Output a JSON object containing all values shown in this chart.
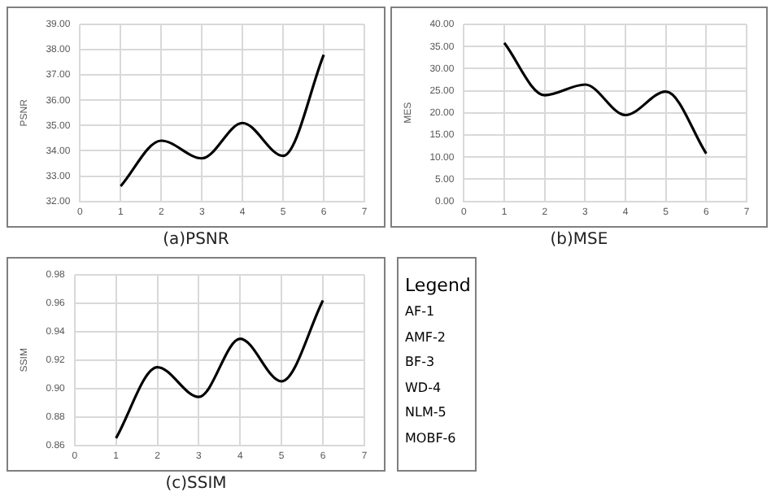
{
  "chart_data": [
    {
      "type": "line",
      "title": "(a)PSNR",
      "ylabel": "PSNR",
      "x": [
        1,
        2,
        3,
        4,
        5,
        6
      ],
      "series": [
        {
          "color": "#000000",
          "values": [
            32.6,
            34.4,
            33.7,
            35.1,
            33.8,
            37.8
          ]
        }
      ],
      "xlim": [
        0,
        7
      ],
      "xticks": [
        0,
        1,
        2,
        3,
        4,
        5,
        6,
        7
      ],
      "ylim": [
        32,
        39
      ],
      "yticks": [
        {
          "value": 32,
          "label": "32.00"
        },
        {
          "value": 33,
          "label": "33.00"
        },
        {
          "value": 34,
          "label": "34.00"
        },
        {
          "value": 35,
          "label": "35.00"
        },
        {
          "value": 36,
          "label": "36.00"
        },
        {
          "value": 37,
          "label": "37.00"
        },
        {
          "value": 38,
          "label": "38.00"
        },
        {
          "value": 39,
          "label": "39.00"
        }
      ],
      "grid": true,
      "legend": false,
      "marker": "none"
    },
    {
      "type": "line",
      "title": "(b)MSE",
      "ylabel": "MES",
      "x": [
        1,
        2,
        3,
        4,
        5,
        6
      ],
      "series": [
        {
          "color": "#000000",
          "values": [
            35.8,
            24,
            26.4,
            19.5,
            24.8,
            10.8
          ]
        }
      ],
      "xlim": [
        0,
        7
      ],
      "xticks": [
        0,
        1,
        2,
        3,
        4,
        5,
        6,
        7
      ],
      "ylim": [
        0,
        40
      ],
      "yticks": [
        {
          "value": 0,
          "label": "0.00"
        },
        {
          "value": 5,
          "label": "5.00"
        },
        {
          "value": 10,
          "label": "10.00"
        },
        {
          "value": 15,
          "label": "15.00"
        },
        {
          "value": 20,
          "label": "20.00"
        },
        {
          "value": 25,
          "label": "25.00"
        },
        {
          "value": 30,
          "label": "30.00"
        },
        {
          "value": 35,
          "label": "35.00"
        },
        {
          "value": 40,
          "label": "40.00"
        }
      ],
      "grid": true,
      "legend": false,
      "marker": "none"
    },
    {
      "type": "line",
      "title": "(c)SSIM",
      "ylabel": "SSIM",
      "x": [
        1,
        2,
        3,
        4,
        5,
        6
      ],
      "series": [
        {
          "color": "#000000",
          "values": [
            0.865,
            0.915,
            0.894,
            0.935,
            0.905,
            0.962
          ]
        }
      ],
      "xlim": [
        0,
        7
      ],
      "xticks": [
        0,
        1,
        2,
        3,
        4,
        5,
        6,
        7
      ],
      "ylim": [
        0.86,
        0.98
      ],
      "yticks": [
        {
          "value": 0.86,
          "label": "0.86"
        },
        {
          "value": 0.88,
          "label": "0.88"
        },
        {
          "value": 0.9,
          "label": "0.90"
        },
        {
          "value": 0.92,
          "label": "0.92"
        },
        {
          "value": 0.94,
          "label": "0.94"
        },
        {
          "value": 0.96,
          "label": "0.96"
        },
        {
          "value": 0.98,
          "label": "0.98"
        }
      ],
      "grid": true,
      "legend": false,
      "marker": "none"
    },
    {
      "type": "other",
      "title": "Legend",
      "annotations": [
        "AF-1",
        "AMF-2",
        "BF-3",
        "WD-4",
        "NLM-5",
        "MOBF-6"
      ]
    }
  ]
}
